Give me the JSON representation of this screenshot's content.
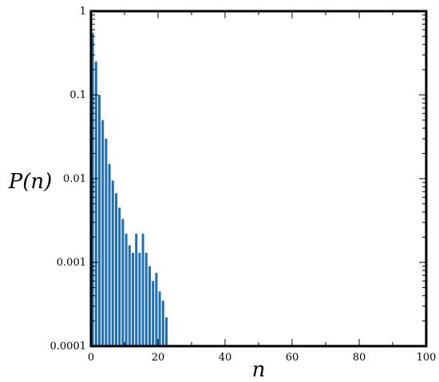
{
  "chart_data": {
    "type": "bar",
    "title": "",
    "xlabel": "n",
    "ylabel": "P(n)",
    "yscale": "log",
    "xlim": [
      0,
      100
    ],
    "ylim": [
      0.0001,
      1
    ],
    "xticks": [
      0,
      20,
      40,
      60,
      80,
      100
    ],
    "xtick_labels": [
      "0",
      "20",
      "40",
      "60",
      "80",
      "100"
    ],
    "yticks": [
      0.0001,
      0.001,
      0.01,
      0.1,
      1
    ],
    "ytick_labels": [
      "0.0001",
      "0.001",
      "0.01",
      "0.1",
      "1"
    ],
    "grid": false,
    "bar_color": "#1f6fb4",
    "series": [
      {
        "x": [
          0,
          1,
          2,
          3,
          4,
          5,
          6,
          7,
          8,
          9,
          10,
          11,
          12,
          13,
          14,
          15,
          16,
          17,
          18,
          19,
          20,
          21,
          22
        ],
        "values": [
          0.55,
          0.25,
          0.1,
          0.05,
          0.03,
          0.015,
          0.0095,
          0.0067,
          0.0045,
          0.0033,
          0.0022,
          0.0016,
          0.0013,
          0.0022,
          0.0013,
          0.0022,
          0.0013,
          0.0009,
          0.0006,
          0.00075,
          0.00045,
          0.00035,
          0.00022
        ]
      }
    ]
  }
}
